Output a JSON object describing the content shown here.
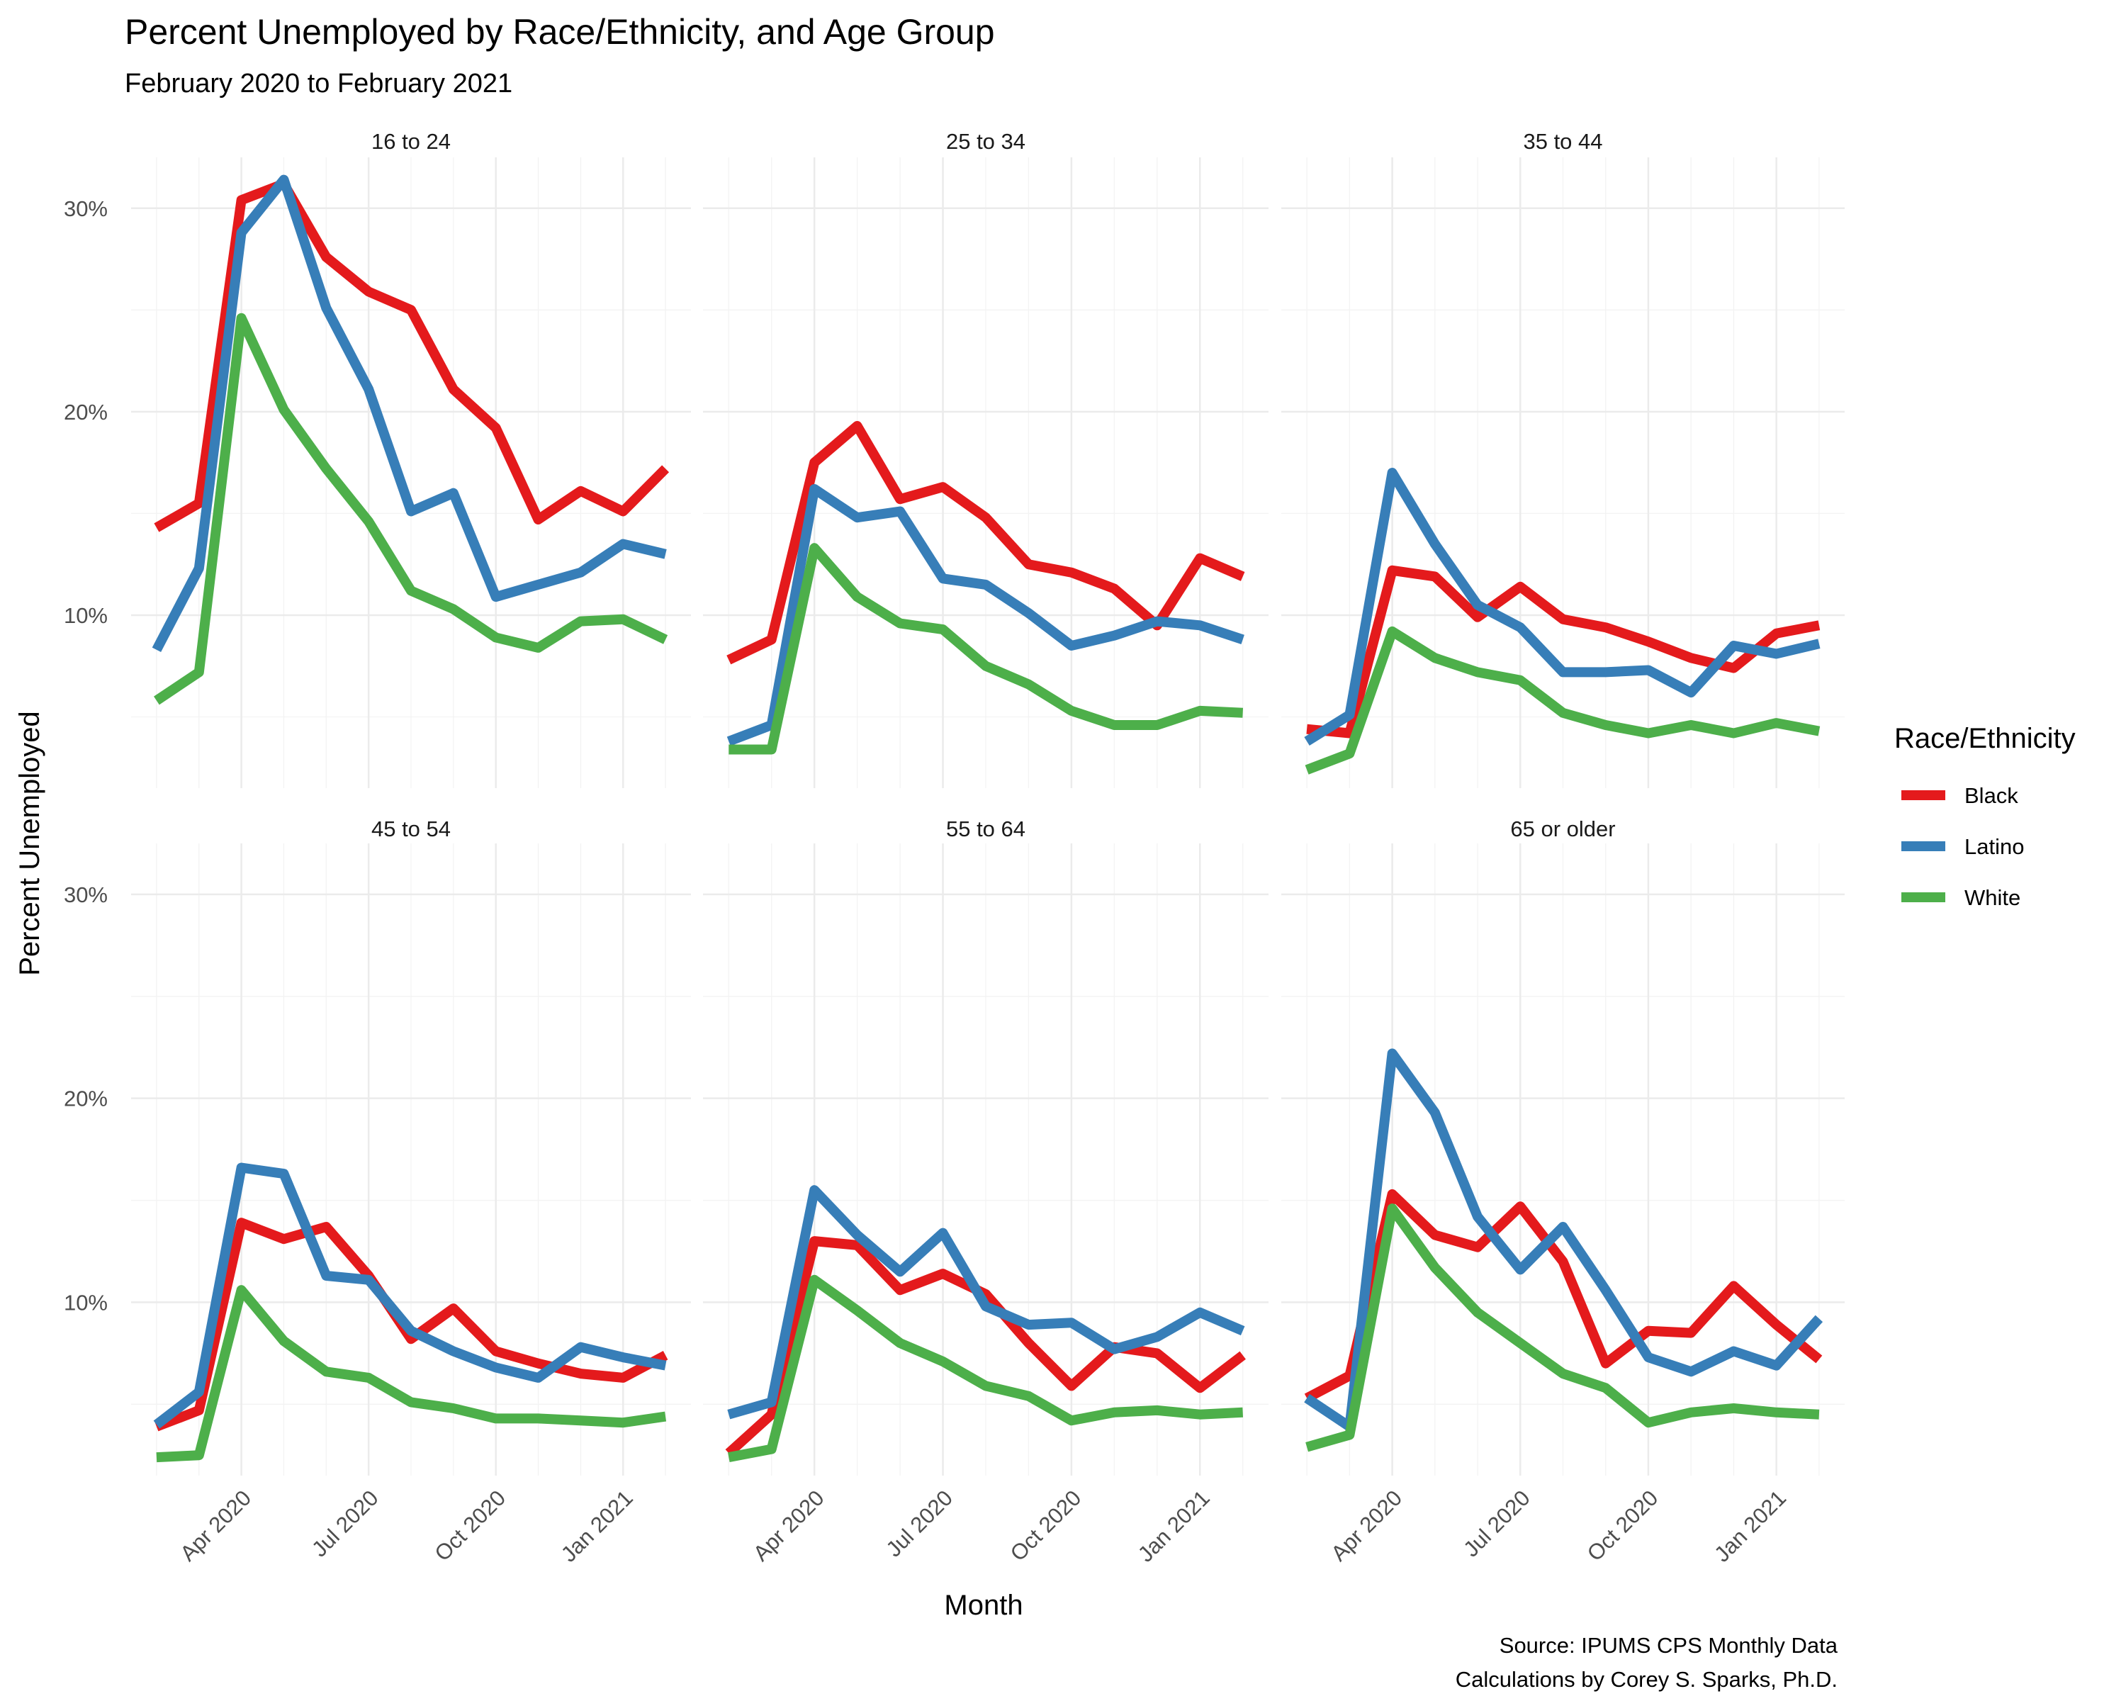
{
  "chart_data": {
    "type": "line",
    "title": "Percent Unemployed by Race/Ethnicity, and Age Group",
    "subtitle": "February 2020 to February 2021",
    "xlabel": "Month",
    "ylabel": "Percent Unemployed",
    "ylim": [
      0.015,
      0.325
    ],
    "yticks": [
      0.1,
      0.2,
      0.3
    ],
    "ytick_labels": [
      "10%",
      "20%",
      "30%"
    ],
    "x": [
      "2020-02",
      "2020-03",
      "2020-04",
      "2020-05",
      "2020-06",
      "2020-07",
      "2020-08",
      "2020-09",
      "2020-10",
      "2020-11",
      "2020-12",
      "2021-01",
      "2021-02"
    ],
    "xtick_dates": [
      "2020-04",
      "2020-07",
      "2020-10",
      "2021-01"
    ],
    "xtick_labels": [
      "Apr 2020",
      "Jul 2020",
      "Oct 2020",
      "Jan 2021"
    ],
    "grid": true,
    "legend": {
      "title": "Race/Ethnicity",
      "placement": "right",
      "entries": [
        {
          "label": "Black",
          "color": "#e41a1c"
        },
        {
          "label": "Latino",
          "color": "#377eb8"
        },
        {
          "label": "White",
          "color": "#4daf4a"
        }
      ]
    },
    "caption": [
      "Source: IPUMS CPS Monthly Data",
      "Calculations by Corey S. Sparks, Ph.D."
    ],
    "facets": [
      {
        "label": "16 to 24",
        "series": [
          {
            "name": "Black",
            "values": [
              0.143,
              0.155,
              0.304,
              0.312,
              0.276,
              0.259,
              0.25,
              0.211,
              0.192,
              0.147,
              0.161,
              0.151,
              0.172
            ]
          },
          {
            "name": "Latino",
            "values": [
              0.083,
              0.123,
              0.288,
              0.314,
              0.251,
              0.211,
              0.151,
              0.16,
              0.109,
              0.115,
              0.121,
              0.135,
              0.13
            ]
          },
          {
            "name": "White",
            "values": [
              0.058,
              0.072,
              0.246,
              0.201,
              0.172,
              0.146,
              0.112,
              0.103,
              0.089,
              0.084,
              0.097,
              0.098,
              0.088
            ]
          }
        ]
      },
      {
        "label": "25 to 34",
        "series": [
          {
            "name": "Black",
            "values": [
              0.078,
              0.088,
              0.175,
              0.193,
              0.157,
              0.163,
              0.148,
              0.125,
              0.121,
              0.113,
              0.095,
              0.128,
              0.119
            ]
          },
          {
            "name": "Latino",
            "values": [
              0.038,
              0.046,
              0.162,
              0.148,
              0.151,
              0.118,
              0.115,
              0.101,
              0.085,
              0.09,
              0.097,
              0.095,
              0.088
            ]
          },
          {
            "name": "White",
            "values": [
              0.034,
              0.034,
              0.133,
              0.109,
              0.096,
              0.093,
              0.075,
              0.066,
              0.053,
              0.046,
              0.046,
              0.053,
              0.052
            ]
          }
        ]
      },
      {
        "label": "35 to 44",
        "series": [
          {
            "name": "Black",
            "values": [
              0.044,
              0.042,
              0.122,
              0.119,
              0.099,
              0.114,
              0.098,
              0.094,
              0.087,
              0.079,
              0.074,
              0.091,
              0.095
            ]
          },
          {
            "name": "Latino",
            "values": [
              0.038,
              0.051,
              0.17,
              0.135,
              0.105,
              0.094,
              0.072,
              0.072,
              0.073,
              0.062,
              0.085,
              0.081,
              0.086
            ]
          },
          {
            "name": "White",
            "values": [
              0.024,
              0.032,
              0.092,
              0.079,
              0.072,
              0.068,
              0.052,
              0.046,
              0.042,
              0.046,
              0.042,
              0.047,
              0.043
            ]
          }
        ]
      },
      {
        "label": "45 to 54",
        "series": [
          {
            "name": "Black",
            "values": [
              0.039,
              0.047,
              0.139,
              0.131,
              0.137,
              0.113,
              0.082,
              0.097,
              0.076,
              0.07,
              0.065,
              0.063,
              0.074
            ]
          },
          {
            "name": "Latino",
            "values": [
              0.04,
              0.056,
              0.166,
              0.163,
              0.113,
              0.111,
              0.086,
              0.076,
              0.068,
              0.063,
              0.078,
              0.073,
              0.069
            ]
          },
          {
            "name": "White",
            "values": [
              0.024,
              0.025,
              0.106,
              0.081,
              0.066,
              0.063,
              0.051,
              0.048,
              0.043,
              0.043,
              0.042,
              0.041,
              0.044
            ]
          }
        ]
      },
      {
        "label": "55 to 64",
        "series": [
          {
            "name": "Black",
            "values": [
              0.026,
              0.045,
              0.13,
              0.128,
              0.106,
              0.114,
              0.104,
              0.08,
              0.059,
              0.078,
              0.075,
              0.058,
              0.074
            ]
          },
          {
            "name": "Latino",
            "values": [
              0.045,
              0.051,
              0.155,
              0.133,
              0.115,
              0.134,
              0.098,
              0.089,
              0.09,
              0.077,
              0.083,
              0.095,
              0.086
            ]
          },
          {
            "name": "White",
            "values": [
              0.024,
              0.028,
              0.111,
              0.096,
              0.08,
              0.071,
              0.059,
              0.054,
              0.042,
              0.046,
              0.047,
              0.045,
              0.046
            ]
          }
        ]
      },
      {
        "label": "65 or older",
        "series": [
          {
            "name": "Black",
            "values": [
              0.053,
              0.064,
              0.153,
              0.133,
              0.127,
              0.147,
              0.12,
              0.07,
              0.086,
              0.085,
              0.108,
              0.089,
              0.072
            ]
          },
          {
            "name": "Latino",
            "values": [
              0.053,
              0.039,
              0.222,
              0.193,
              0.142,
              0.116,
              0.137,
              0.106,
              0.073,
              0.066,
              0.076,
              0.069,
              0.092
            ]
          },
          {
            "name": "White",
            "values": [
              0.029,
              0.035,
              0.146,
              0.117,
              0.095,
              0.08,
              0.065,
              0.058,
              0.041,
              0.046,
              0.048,
              0.046,
              0.045
            ]
          }
        ]
      }
    ]
  }
}
